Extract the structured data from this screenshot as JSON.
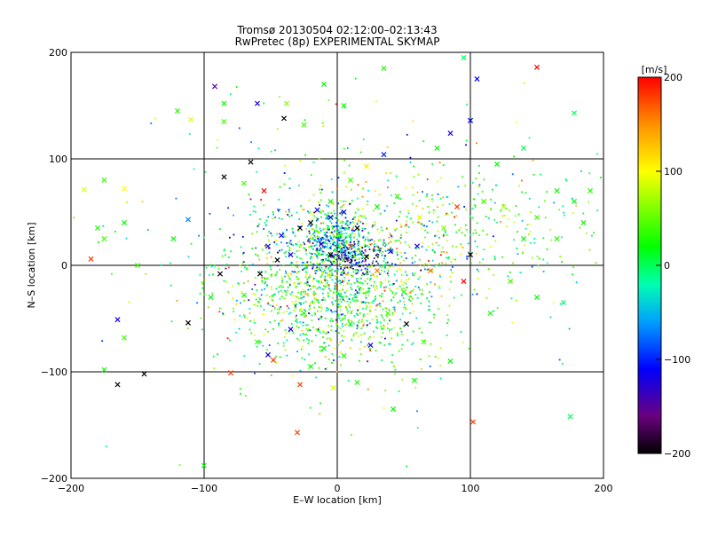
{
  "chart_data": {
    "type": "scatter",
    "title": "Tromsø 20130504 02:12:00–02:13:43",
    "subtitle": "RwPretec (8p) EXPERIMENTAL SKYMAP",
    "xlabel": "E–W location [km]",
    "ylabel": "N–S location [km]",
    "xlim": [
      -200,
      200
    ],
    "ylim": [
      -200,
      200
    ],
    "xticks": [
      -200,
      -100,
      0,
      100,
      200
    ],
    "yticks": [
      -200,
      -100,
      0,
      100,
      200
    ],
    "xtick_labels": [
      "−200",
      "−100",
      "0",
      "100",
      "200"
    ],
    "ytick_labels": [
      "−200",
      "−100",
      "0",
      "100",
      "200"
    ],
    "grid": true,
    "colorbar": {
      "label": "[m/s]",
      "range": [
        -200,
        200
      ],
      "ticks": [
        -200,
        -100,
        0,
        100,
        200
      ],
      "tick_labels": [
        "−200",
        "−100",
        "0",
        "100",
        "200"
      ],
      "stops": [
        {
          "value": -200,
          "color": "#000000"
        },
        {
          "value": -160,
          "color": "#6a0080"
        },
        {
          "value": -110,
          "color": "#0000ff"
        },
        {
          "value": -60,
          "color": "#00a0ff"
        },
        {
          "value": -20,
          "color": "#00ffb0"
        },
        {
          "value": 20,
          "color": "#00ff00"
        },
        {
          "value": 100,
          "color": "#ffff00"
        },
        {
          "value": 150,
          "color": "#ff9000"
        },
        {
          "value": 200,
          "color": "#ff0000"
        }
      ]
    },
    "markers": [
      {
        "x": 150,
        "y": 186,
        "v": 200
      },
      {
        "x": -60,
        "y": 152,
        "v": -120
      },
      {
        "x": -40,
        "y": 138,
        "v": -200
      },
      {
        "x": -38,
        "y": 152,
        "v": 60
      },
      {
        "x": -92,
        "y": 168,
        "v": -150
      },
      {
        "x": -120,
        "y": 145,
        "v": 30
      },
      {
        "x": -85,
        "y": 135,
        "v": 40
      },
      {
        "x": -85,
        "y": 152,
        "v": 20
      },
      {
        "x": -110,
        "y": 137,
        "v": 90
      },
      {
        "x": 100,
        "y": 136,
        "v": -110
      },
      {
        "x": 85,
        "y": 124,
        "v": -120
      },
      {
        "x": 178,
        "y": 143,
        "v": 0
      },
      {
        "x": -65,
        "y": 97,
        "v": -200
      },
      {
        "x": -85,
        "y": 83,
        "v": -200
      },
      {
        "x": -70,
        "y": 77,
        "v": 40
      },
      {
        "x": -55,
        "y": 70,
        "v": 200
      },
      {
        "x": 35,
        "y": 104,
        "v": -100
      },
      {
        "x": 22,
        "y": 93,
        "v": 110
      },
      {
        "x": -175,
        "y": 80,
        "v": 40
      },
      {
        "x": -160,
        "y": 72,
        "v": 100
      },
      {
        "x": -190,
        "y": 71,
        "v": 90
      },
      {
        "x": -180,
        "y": 35,
        "v": 30
      },
      {
        "x": -175,
        "y": 25,
        "v": 40
      },
      {
        "x": -160,
        "y": 40,
        "v": 20
      },
      {
        "x": -112,
        "y": 43,
        "v": -70
      },
      {
        "x": -185,
        "y": 6,
        "v": 180
      },
      {
        "x": -150,
        "y": 0,
        "v": 40
      },
      {
        "x": -123,
        "y": 25,
        "v": 20
      },
      {
        "x": -175,
        "y": -98,
        "v": 20
      },
      {
        "x": -165,
        "y": -112,
        "v": -200
      },
      {
        "x": -112,
        "y": -54,
        "v": -200
      },
      {
        "x": -165,
        "y": -51,
        "v": -120
      },
      {
        "x": -80,
        "y": -101,
        "v": 180
      },
      {
        "x": -52,
        "y": -84,
        "v": -120
      },
      {
        "x": -48,
        "y": -89,
        "v": 180
      },
      {
        "x": -28,
        "y": -112,
        "v": 180
      },
      {
        "x": -30,
        "y": -157,
        "v": 180
      },
      {
        "x": 102,
        "y": -147,
        "v": 180
      },
      {
        "x": -100,
        "y": -188,
        "v": 20
      },
      {
        "x": 175,
        "y": -142,
        "v": 0
      },
      {
        "x": -88,
        "y": -8,
        "v": -200
      },
      {
        "x": -58,
        "y": -8,
        "v": -200
      },
      {
        "x": -45,
        "y": 5,
        "v": -200
      },
      {
        "x": -52,
        "y": 18,
        "v": -100
      },
      {
        "x": -42,
        "y": 28,
        "v": -120
      },
      {
        "x": -28,
        "y": 35,
        "v": -200
      },
      {
        "x": -20,
        "y": 40,
        "v": -200
      },
      {
        "x": -15,
        "y": 52,
        "v": -110
      },
      {
        "x": -5,
        "y": 45,
        "v": -120
      },
      {
        "x": 5,
        "y": 50,
        "v": -110
      },
      {
        "x": 15,
        "y": 35,
        "v": -200
      },
      {
        "x": 10,
        "y": 18,
        "v": 170
      },
      {
        "x": 22,
        "y": 8,
        "v": -200
      },
      {
        "x": 30,
        "y": -5,
        "v": 160
      },
      {
        "x": -5,
        "y": 10,
        "v": -200
      },
      {
        "x": -12,
        "y": 20,
        "v": -130
      },
      {
        "x": 2,
        "y": 28,
        "v": 20
      },
      {
        "x": 40,
        "y": 13,
        "v": -120
      },
      {
        "x": 60,
        "y": 18,
        "v": -120
      },
      {
        "x": 52,
        "y": -55,
        "v": -200
      },
      {
        "x": 38,
        "y": -45,
        "v": 40
      },
      {
        "x": -35,
        "y": -60,
        "v": -120
      },
      {
        "x": -25,
        "y": -45,
        "v": 30
      },
      {
        "x": 10,
        "y": -55,
        "v": 10
      },
      {
        "x": 25,
        "y": -75,
        "v": -120
      },
      {
        "x": 90,
        "y": 55,
        "v": 180
      },
      {
        "x": 110,
        "y": 60,
        "v": 40
      },
      {
        "x": 125,
        "y": 55,
        "v": 80
      },
      {
        "x": 150,
        "y": 45,
        "v": 40
      },
      {
        "x": 165,
        "y": 70,
        "v": 20
      },
      {
        "x": 178,
        "y": 60,
        "v": 20
      },
      {
        "x": 185,
        "y": 40,
        "v": 20
      },
      {
        "x": 165,
        "y": 25,
        "v": 30
      },
      {
        "x": 140,
        "y": 25,
        "v": 20
      },
      {
        "x": 130,
        "y": -15,
        "v": 40
      },
      {
        "x": 150,
        "y": -30,
        "v": 20
      },
      {
        "x": 170,
        "y": -35,
        "v": 0
      },
      {
        "x": 115,
        "y": -45,
        "v": 30
      },
      {
        "x": 100,
        "y": 10,
        "v": -200
      },
      {
        "x": 80,
        "y": 35,
        "v": 60
      },
      {
        "x": 62,
        "y": 45,
        "v": 90
      },
      {
        "x": 45,
        "y": 65,
        "v": 40
      },
      {
        "x": 30,
        "y": 55,
        "v": 20
      },
      {
        "x": 70,
        "y": -5,
        "v": 160
      },
      {
        "x": 95,
        "y": -15,
        "v": 200
      },
      {
        "x": 65,
        "y": -72,
        "v": 40
      },
      {
        "x": 85,
        "y": -90,
        "v": 20
      },
      {
        "x": 5,
        "y": -85,
        "v": 30
      },
      {
        "x": -10,
        "y": -78,
        "v": 20
      },
      {
        "x": -60,
        "y": -72,
        "v": 30
      },
      {
        "x": -70,
        "y": -28,
        "v": 30
      },
      {
        "x": -95,
        "y": -30,
        "v": 20
      },
      {
        "x": 190,
        "y": 70,
        "v": 30
      },
      {
        "x": 120,
        "y": 95,
        "v": 20
      },
      {
        "x": 140,
        "y": 110,
        "v": 0
      },
      {
        "x": -160,
        "y": -68,
        "v": 40
      },
      {
        "x": -20,
        "y": -95,
        "v": 20
      },
      {
        "x": 15,
        "y": -110,
        "v": 30
      },
      {
        "x": -3,
        "y": -115,
        "v": 90
      },
      {
        "x": 42,
        "y": -135,
        "v": 20
      },
      {
        "x": 58,
        "y": -108,
        "v": 20
      },
      {
        "x": 10,
        "y": 80,
        "v": 40
      },
      {
        "x": -25,
        "y": 132,
        "v": 40
      },
      {
        "x": 5,
        "y": 150,
        "v": 20
      },
      {
        "x": -10,
        "y": 170,
        "v": 20
      },
      {
        "x": 35,
        "y": 185,
        "v": 30
      },
      {
        "x": 95,
        "y": 195,
        "v": 0
      },
      {
        "x": -5,
        "y": 60,
        "v": 20
      },
      {
        "x": 75,
        "y": 110,
        "v": 20
      },
      {
        "x": 105,
        "y": 175,
        "v": -110
      },
      {
        "x": -145,
        "y": -102,
        "v": -200
      },
      {
        "x": 50,
        "y": -25,
        "v": 30
      },
      {
        "x": -35,
        "y": 10,
        "v": -120
      }
    ],
    "clusters": [
      {
        "cx": 0,
        "cy": 0,
        "sx": 20,
        "sy": 38,
        "n": 520,
        "vmean": 20,
        "vspread": 70
      },
      {
        "cx": 0,
        "cy": 28,
        "sx": 10,
        "sy": 12,
        "n": 180,
        "vmean": -60,
        "vspread": 50
      },
      {
        "cx": 12,
        "cy": 5,
        "sx": 14,
        "sy": 8,
        "n": 150,
        "vmean": -140,
        "vspread": 55
      },
      {
        "cx": -18,
        "cy": 18,
        "sx": 10,
        "sy": 12,
        "n": 70,
        "vmean": -30,
        "vspread": 80
      },
      {
        "cx": -5,
        "cy": -35,
        "sx": 35,
        "sy": 30,
        "n": 480,
        "vmean": 30,
        "vspread": 55
      },
      {
        "cx": 60,
        "cy": 25,
        "sx": 30,
        "sy": 30,
        "n": 220,
        "vmean": 50,
        "vspread": 80
      },
      {
        "cx": 120,
        "cy": 40,
        "sx": 45,
        "sy": 30,
        "n": 180,
        "vmean": 25,
        "vspread": 50
      },
      {
        "cx": 40,
        "cy": -40,
        "sx": 28,
        "sy": 25,
        "n": 160,
        "vmean": 10,
        "vspread": 60
      },
      {
        "cx": -40,
        "cy": 30,
        "sx": 25,
        "sy": 22,
        "n": 100,
        "vmean": -40,
        "vspread": 70
      },
      {
        "cx": -45,
        "cy": -20,
        "sx": 30,
        "sy": 28,
        "n": 130,
        "vmean": 40,
        "vspread": 55
      },
      {
        "cx": 0,
        "cy": 0,
        "sx": 100,
        "sy": 85,
        "n": 220,
        "vmean": 20,
        "vspread": 70
      }
    ]
  }
}
